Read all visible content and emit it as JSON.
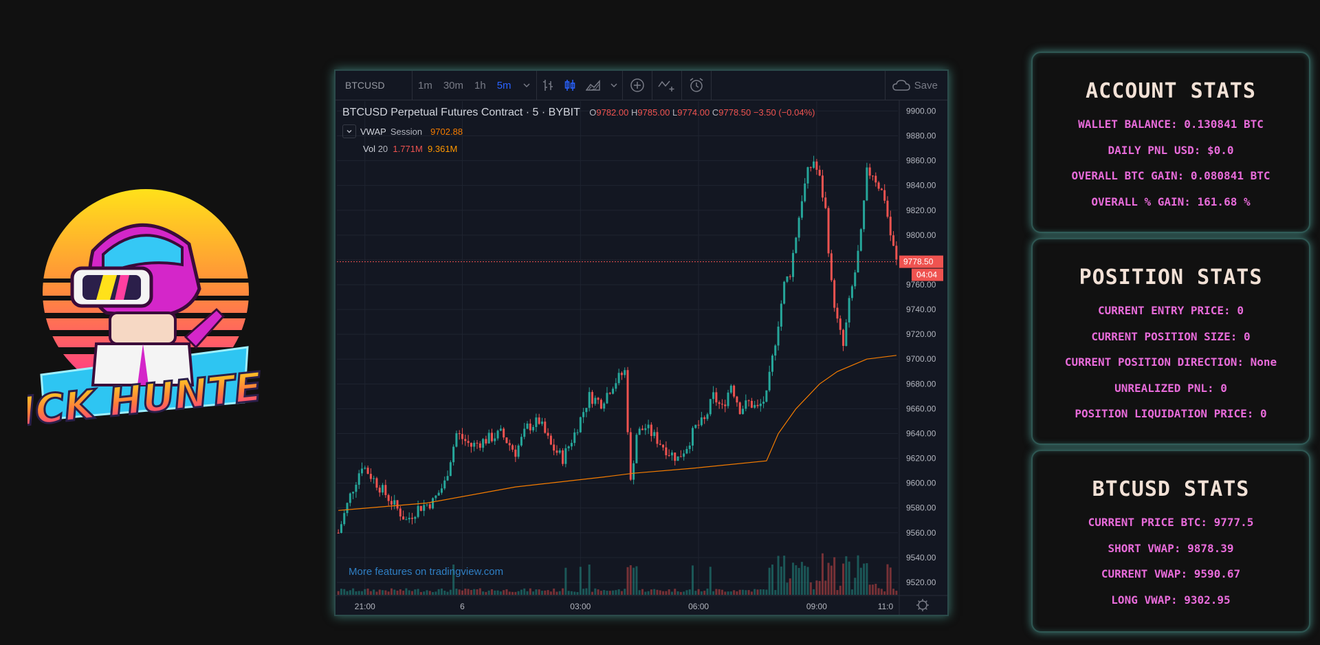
{
  "logo": {
    "text": "LICK HUNTER"
  },
  "chart": {
    "symbol": "BTCUSD",
    "intervals": [
      "1m",
      "30m",
      "1h",
      "5m"
    ],
    "active_interval": "5m",
    "save_label": "Save",
    "title": "BTCUSD Perpetual Futures Contract · 5 · BYBIT",
    "ohlc": {
      "o": "9782.00",
      "h": "9785.00",
      "l": "9774.00",
      "c": "9778.50",
      "change": "−3.50 (−0.04%)"
    },
    "vwap": {
      "label": "VWAP",
      "sub": "Session",
      "value": "9702.88"
    },
    "vol": {
      "label": "Vol",
      "period": "20",
      "v1": "1.771M",
      "v2": "9.361M"
    },
    "price_tag": "9778.50",
    "countdown": "04:04",
    "tv_link": "More features on tradingview.com",
    "icons": [
      "bar-style-icon",
      "candle-style-icon",
      "area-style-icon",
      "indicators-icon",
      "compare-icon",
      "alert-icon",
      "cloud-icon",
      "settings-gear-icon"
    ],
    "colors": {
      "up": "#26a69a",
      "down": "#ef5350",
      "vwap": "#f57c00",
      "accent": "#2962ff"
    }
  },
  "chart_data": {
    "type": "candlestick",
    "y_ticks": [
      "9900.00",
      "9880.00",
      "9860.00",
      "9840.00",
      "9820.00",
      "9800.00",
      "9780.00",
      "9760.00",
      "9740.00",
      "9720.00",
      "9700.00",
      "9680.00",
      "9660.00",
      "9640.00",
      "9620.00",
      "9600.00",
      "9580.00",
      "9560.00",
      "9540.00",
      "9520.00"
    ],
    "x_ticks": [
      "21:00",
      "6",
      "03:00",
      "06:00",
      "09:00",
      "11:0"
    ],
    "ylim": [
      9510,
      9908
    ],
    "last_price": 9778.5,
    "close_path": [
      [
        0,
        9560
      ],
      [
        4,
        9590
      ],
      [
        8,
        9615
      ],
      [
        13,
        9600
      ],
      [
        18,
        9585
      ],
      [
        23,
        9570
      ],
      [
        27,
        9580
      ],
      [
        32,
        9585
      ],
      [
        36,
        9600
      ],
      [
        40,
        9640
      ],
      [
        45,
        9630
      ],
      [
        50,
        9635
      ],
      [
        55,
        9640
      ],
      [
        60,
        9625
      ],
      [
        64,
        9645
      ],
      [
        68,
        9650
      ],
      [
        72,
        9630
      ],
      [
        76,
        9620
      ],
      [
        80,
        9640
      ],
      [
        85,
        9670
      ],
      [
        89,
        9665
      ],
      [
        93,
        9680
      ],
      [
        97,
        9690
      ],
      [
        99,
        9600
      ],
      [
        101,
        9640
      ],
      [
        104,
        9645
      ],
      [
        108,
        9635
      ],
      [
        112,
        9625
      ],
      [
        115,
        9620
      ],
      [
        118,
        9630
      ],
      [
        121,
        9645
      ],
      [
        124,
        9650
      ],
      [
        127,
        9670
      ],
      [
        130,
        9660
      ],
      [
        133,
        9680
      ],
      [
        136,
        9660
      ],
      [
        139,
        9665
      ],
      [
        142,
        9660
      ],
      [
        145,
        9670
      ],
      [
        147,
        9700
      ],
      [
        149,
        9730
      ],
      [
        151,
        9760
      ],
      [
        153,
        9770
      ],
      [
        155,
        9800
      ],
      [
        157,
        9830
      ],
      [
        159,
        9850
      ],
      [
        161,
        9860
      ],
      [
        163,
        9845
      ],
      [
        165,
        9820
      ],
      [
        167,
        9760
      ],
      [
        169,
        9730
      ],
      [
        171,
        9710
      ],
      [
        173,
        9745
      ],
      [
        175,
        9770
      ],
      [
        177,
        9800
      ],
      [
        179,
        9850
      ],
      [
        181,
        9850
      ],
      [
        183,
        9840
      ],
      [
        185,
        9830
      ],
      [
        187,
        9800
      ],
      [
        189,
        9778.5
      ]
    ],
    "vwap_path": [
      [
        0,
        9578
      ],
      [
        30,
        9584
      ],
      [
        60,
        9597
      ],
      [
        90,
        9605
      ],
      [
        100,
        9608
      ],
      [
        120,
        9612
      ],
      [
        145,
        9618
      ],
      [
        149,
        9640
      ],
      [
        155,
        9660
      ],
      [
        163,
        9680
      ],
      [
        169,
        9690
      ],
      [
        179,
        9700
      ],
      [
        189,
        9703
      ]
    ]
  },
  "account_stats": {
    "title": "ACCOUNT STATS",
    "rows": [
      "WALLET BALANCE: 0.130841 BTC",
      "DAILY PNL USD: $0.0",
      "OVERALL BTC GAIN: 0.080841 BTC",
      "OVERALL % GAIN: 161.68 %"
    ]
  },
  "position_stats": {
    "title": "POSITION STATS",
    "rows": [
      "CURRENT ENTRY PRICE: 0",
      "CURRENT POSITION SIZE: 0",
      "CURRENT POSITION DIRECTION: None",
      "UNREALIZED PNL: 0",
      "POSITION LIQUIDATION PRICE: 0"
    ]
  },
  "btcusd_stats": {
    "title": "BTCUSD STATS",
    "rows": [
      "CURRENT PRICE BTC: 9777.5",
      "SHORT VWAP: 9878.39",
      "CURRENT VWAP: 9590.67",
      "LONG VWAP: 9302.95"
    ]
  }
}
